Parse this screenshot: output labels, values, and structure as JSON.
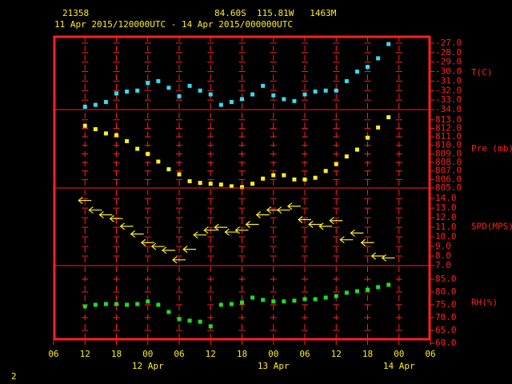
{
  "header": {
    "station": "21358",
    "location": "84.60S  115.81W   1463M",
    "period": "11 Apr 2015/120000UTC - 14 Apr 2015/000000UTC",
    "page": "2"
  },
  "chart_data": {
    "type": "meteogram",
    "x": [
      6,
      8,
      10,
      12,
      14,
      16,
      18,
      20,
      22,
      24,
      26,
      28,
      30,
      32,
      34,
      36,
      38,
      40,
      42,
      44,
      46,
      48,
      50,
      52,
      54,
      56,
      58,
      60,
      62,
      64
    ],
    "xlim": [
      0,
      72
    ],
    "xticks": [
      {
        "value": 0,
        "label": "06"
      },
      {
        "value": 6,
        "label": "12"
      },
      {
        "value": 12,
        "label": "18"
      },
      {
        "value": 18,
        "label": "00"
      },
      {
        "value": 24,
        "label": "06"
      },
      {
        "value": 30,
        "label": "12"
      },
      {
        "value": 36,
        "label": "18"
      },
      {
        "value": 42,
        "label": "00"
      },
      {
        "value": 48,
        "label": "06"
      },
      {
        "value": 54,
        "label": "12"
      },
      {
        "value": 60,
        "label": "18"
      },
      {
        "value": 66,
        "label": "00"
      },
      {
        "value": 72,
        "label": "06"
      }
    ],
    "day_labels": [
      {
        "value": 18,
        "label": "12 Apr"
      },
      {
        "value": 42,
        "label": "13 Apr"
      },
      {
        "value": 66,
        "label": "14 Apr"
      }
    ],
    "panels": [
      {
        "name": "T(C)",
        "color": "#33ddee",
        "marker": "square",
        "ylim": [
          -34,
          -26.25
        ],
        "yticks": [
          {
            "value": -27,
            "label": "-27.0"
          },
          {
            "value": -28,
            "label": "-28.0"
          },
          {
            "value": -29,
            "label": "-29.0"
          },
          {
            "value": -30,
            "label": "-30.0"
          },
          {
            "value": -31,
            "label": "-31.0"
          },
          {
            "value": -32,
            "label": "-32.0"
          },
          {
            "value": -33,
            "label": "-33.0"
          },
          {
            "value": -34,
            "label": "-34.0"
          }
        ],
        "values": [
          -33.7,
          -33.5,
          -33.2,
          -32.3,
          -32.1,
          -32.0,
          -31.2,
          -31.0,
          -31.7,
          -32.6,
          -31.5,
          -32.0,
          -32.4,
          -33.5,
          -33.2,
          -32.9,
          -32.4,
          -31.5,
          -32.5,
          -32.9,
          -33.1,
          -32.4,
          -32.1,
          -32.0,
          -32.0,
          -31.0,
          -30.0,
          -29.5,
          -28.6,
          -27.1
        ]
      },
      {
        "name": "Pre (mb)",
        "color": "#ffee22",
        "marker": "square",
        "ylim": [
          805,
          814.2
        ],
        "yticks": [
          {
            "value": 813,
            "label": "813.0"
          },
          {
            "value": 812,
            "label": "812.0"
          },
          {
            "value": 811,
            "label": "811.0"
          },
          {
            "value": 810,
            "label": "810.0"
          },
          {
            "value": 809,
            "label": "809.0"
          },
          {
            "value": 808,
            "label": "808.0"
          },
          {
            "value": 807,
            "label": "807.0"
          },
          {
            "value": 806,
            "label": "806.0"
          },
          {
            "value": 805,
            "label": "805.0"
          }
        ],
        "values": [
          812.3,
          811.9,
          811.4,
          811.2,
          810.5,
          809.6,
          809.0,
          808.1,
          807.2,
          806.6,
          805.8,
          805.6,
          805.5,
          805.4,
          805.2,
          805.1,
          805.5,
          806.1,
          806.5,
          806.5,
          806.0,
          806.0,
          806.2,
          807.0,
          807.8,
          808.7,
          809.5,
          810.9,
          812.1,
          813.3
        ]
      },
      {
        "name": "SPD(MPS)",
        "color": "#ffee22",
        "marker": "arrow",
        "ylim": [
          7,
          15.1
        ],
        "yticks": [
          {
            "value": 14,
            "label": "14.0"
          },
          {
            "value": 13,
            "label": "13.0"
          },
          {
            "value": 12,
            "label": "12.0"
          },
          {
            "value": 11,
            "label": "11.0"
          },
          {
            "value": 10,
            "label": "10.0"
          },
          {
            "value": 9,
            "label": "9.0"
          },
          {
            "value": 8,
            "label": "8.0"
          },
          {
            "value": 7,
            "label": "7.0"
          }
        ],
        "values": [
          13.8,
          12.8,
          12.3,
          11.9,
          11.1,
          10.3,
          9.4,
          9.0,
          8.6,
          7.6,
          8.7,
          10.2,
          10.7,
          11.0,
          10.5,
          10.7,
          11.3,
          12.3,
          12.8,
          12.8,
          13.2,
          11.8,
          11.3,
          11.1,
          11.7,
          9.7,
          10.4,
          9.4,
          8.0,
          7.8
        ]
      },
      {
        "name": "RH(%)",
        "color": "#22dd22",
        "marker": "square",
        "ylim": [
          61.25,
          90.3
        ],
        "yticks": [
          {
            "value": 85,
            "label": "85.0"
          },
          {
            "value": 80,
            "label": "80.0"
          },
          {
            "value": 75,
            "label": "75.0"
          },
          {
            "value": 70,
            "label": "70.0"
          },
          {
            "value": 65,
            "label": "65.0"
          },
          {
            "value": 60,
            "label": "60.0"
          }
        ],
        "values": [
          74.4,
          75.0,
          75.3,
          75.3,
          75.0,
          75.3,
          76.3,
          75.0,
          72.2,
          69.4,
          68.8,
          68.4,
          66.6,
          75.0,
          75.3,
          75.9,
          77.8,
          76.9,
          76.3,
          76.3,
          76.6,
          77.2,
          77.2,
          77.8,
          78.4,
          79.7,
          80.3,
          80.9,
          81.9,
          82.8
        ]
      }
    ]
  }
}
